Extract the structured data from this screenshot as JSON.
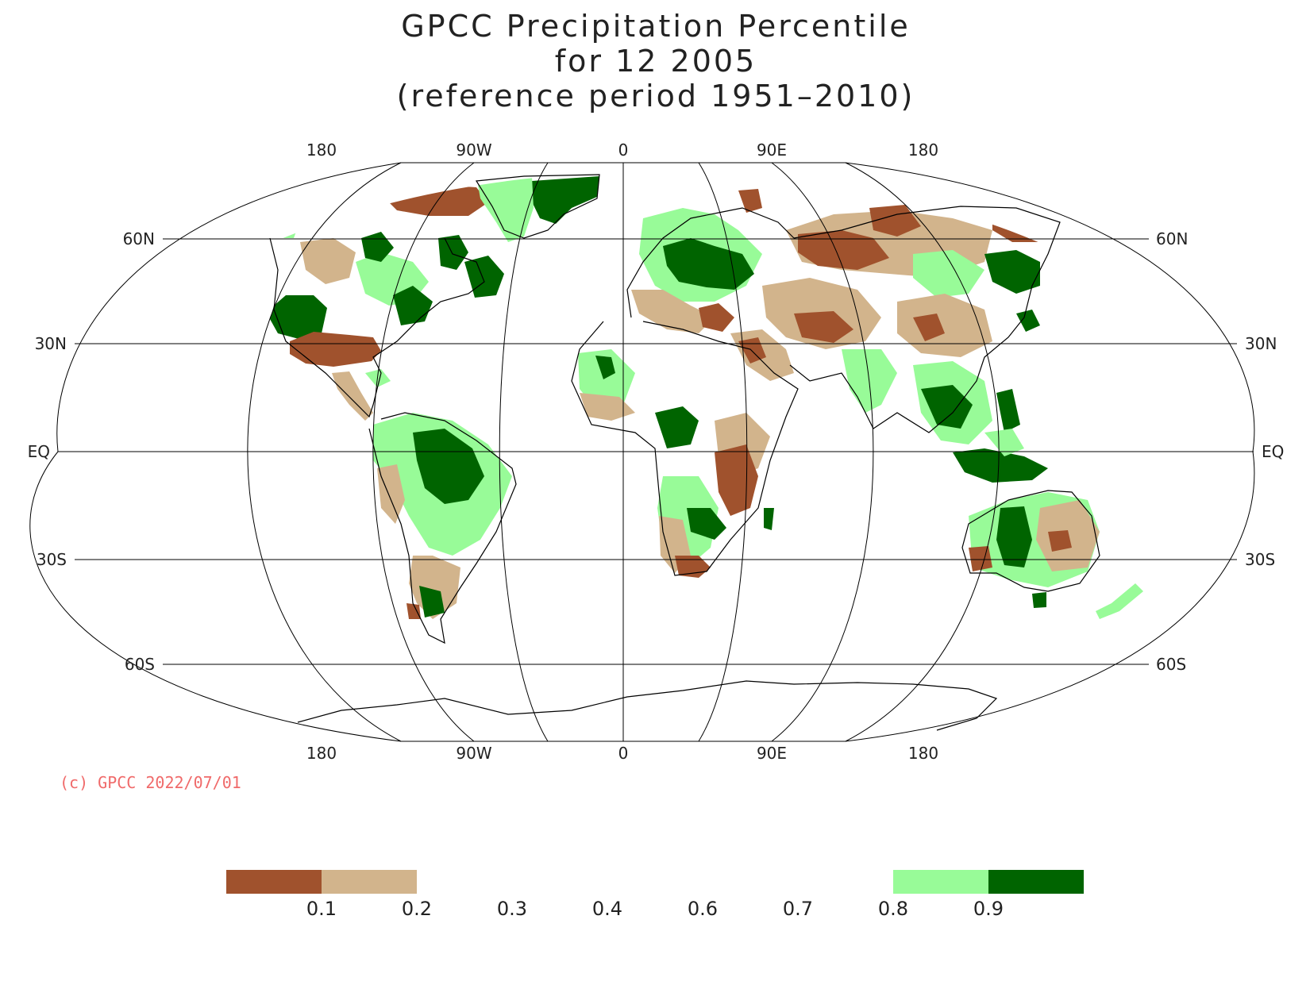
{
  "title": {
    "line1": "GPCC Precipitation Percentile",
    "line2": "for 12 2005",
    "line3": "(reference period 1951–2010)"
  },
  "axes": {
    "lon_labels_top": [
      "180",
      "90W",
      "0",
      "90E",
      "180"
    ],
    "lon_labels_bottom": [
      "180",
      "90W",
      "0",
      "90E",
      "180"
    ],
    "lat_labels": [
      "60N",
      "30N",
      "EQ",
      "30S",
      "60S"
    ]
  },
  "copyright": {
    "text": "(c) GPCC 2022/07/01",
    "color": "#f06a6a"
  },
  "colorbar": {
    "tick_labels": [
      "0.1",
      "0.2",
      "0.3",
      "0.4",
      "0.6",
      "0.7",
      "0.8",
      "0.9"
    ],
    "classes": [
      {
        "range": "<0.1",
        "color": "#a0522d"
      },
      {
        "range": "0.1-0.2",
        "color": "#d2b48c"
      },
      {
        "range": "0.2-0.8",
        "color": "none"
      },
      {
        "range": "0.8-0.9",
        "color": "#98fb98"
      },
      {
        "range": ">0.9",
        "color": "#006400"
      }
    ]
  },
  "colors": {
    "very_dry": "#a0522d",
    "dry": "#d2b48c",
    "wet": "#98fb98",
    "very_wet": "#006400"
  }
}
